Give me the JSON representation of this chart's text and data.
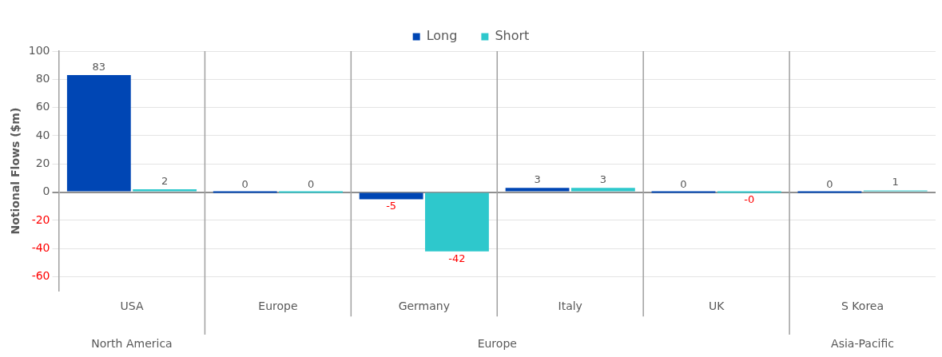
{
  "chart_data": {
    "type": "bar",
    "ylabel": "Notional Flows ($m)",
    "categories": [
      "USA",
      "Europe",
      "Germany",
      "Italy",
      "UK",
      "S Korea"
    ],
    "series": [
      {
        "name": "Long",
        "color": "#0046b4",
        "values": [
          83,
          0,
          -5,
          3,
          0,
          0
        ],
        "value_labels": [
          "83",
          "0",
          "-5",
          "3",
          "0",
          "0"
        ]
      },
      {
        "name": "Short",
        "color": "#2ec8cc",
        "values": [
          2,
          0,
          -42,
          3,
          0,
          1
        ],
        "value_labels": [
          "2",
          "0",
          "-42",
          "3",
          "-0",
          "1"
        ]
      }
    ],
    "ylim": [
      -70,
      100
    ],
    "yticks": [
      -60,
      -40,
      -20,
      0,
      20,
      40,
      60,
      80,
      100
    ],
    "grid": true,
    "legend": "top",
    "annotations": [
      "North America",
      "Europe",
      "Asia-Pacific"
    ]
  }
}
